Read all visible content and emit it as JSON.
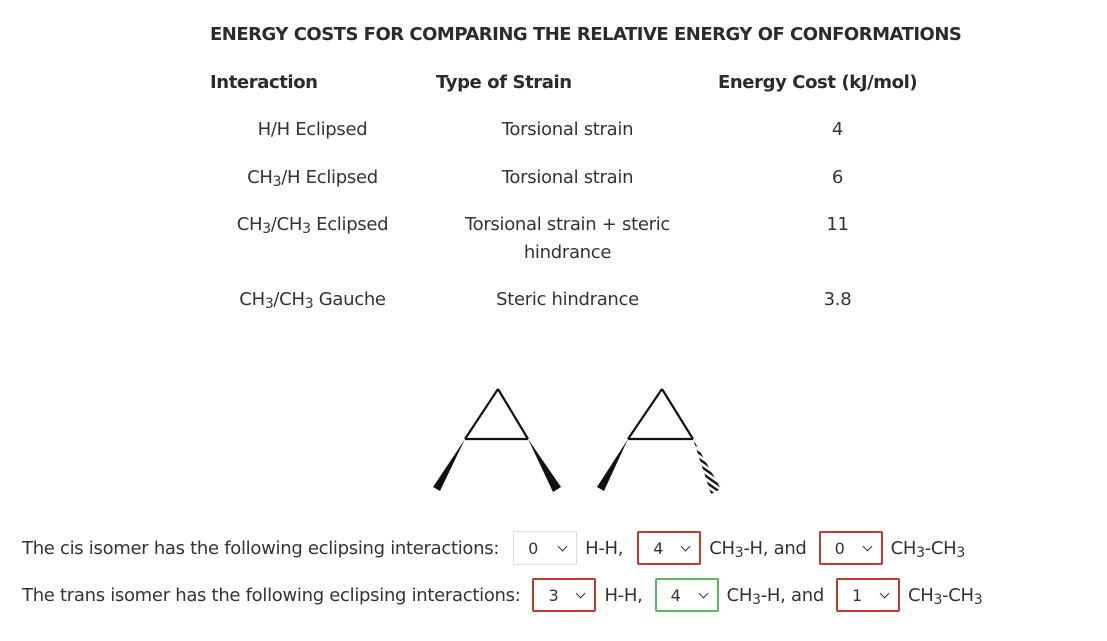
{
  "title": "ENERGY COSTS FOR COMPARING THE RELATIVE ENERGY OF CONFORMATIONS",
  "table": {
    "headers": {
      "interaction": "Interaction",
      "strain": "Type of Strain",
      "energy": "Energy Cost (kJ/mol)"
    },
    "rows": [
      {
        "interaction": [
          "H/H Eclipsed"
        ],
        "strain": "Torsional strain",
        "energy": "4"
      },
      {
        "interaction": [
          "CH",
          "3",
          "/H Eclipsed"
        ],
        "strain": "Torsional strain",
        "energy": "6"
      },
      {
        "interaction": [
          "CH",
          "3",
          "/CH",
          "3",
          " Eclipsed"
        ],
        "strain": "Torsional strain + steric hindrance",
        "energy": "11"
      },
      {
        "interaction": [
          "CH",
          "3",
          "/CH",
          "3",
          " Gauche"
        ],
        "strain": "Steric hindrance",
        "energy": "3.8"
      }
    ]
  },
  "questions": {
    "cis": {
      "prompt": "The cis isomer has the following eclipsing interactions:",
      "select1": "0",
      "label1": "H-H,",
      "select2": "4",
      "label2a": "CH",
      "label2sub": "3",
      "label2b": "-H, and",
      "select3": "0",
      "label3a": "CH",
      "label3sub1": "3",
      "label3b": "-CH",
      "label3sub2": "3"
    },
    "trans": {
      "prompt": "The trans isomer has the following eclipsing interactions:",
      "select1": "3",
      "label1": "H-H,",
      "select2": "4",
      "label2a": "CH",
      "label2sub": "3",
      "label2b": "-H, and",
      "select3": "1",
      "label3a": "CH",
      "label3sub1": "3",
      "label3b": "-CH",
      "label3sub2": "3"
    }
  },
  "colors": {
    "incorrect_border": "#c0392b",
    "correct_border": "#5cb85c",
    "text": "#333333"
  },
  "icons": {
    "dropdown": "chevron-down-icon"
  }
}
